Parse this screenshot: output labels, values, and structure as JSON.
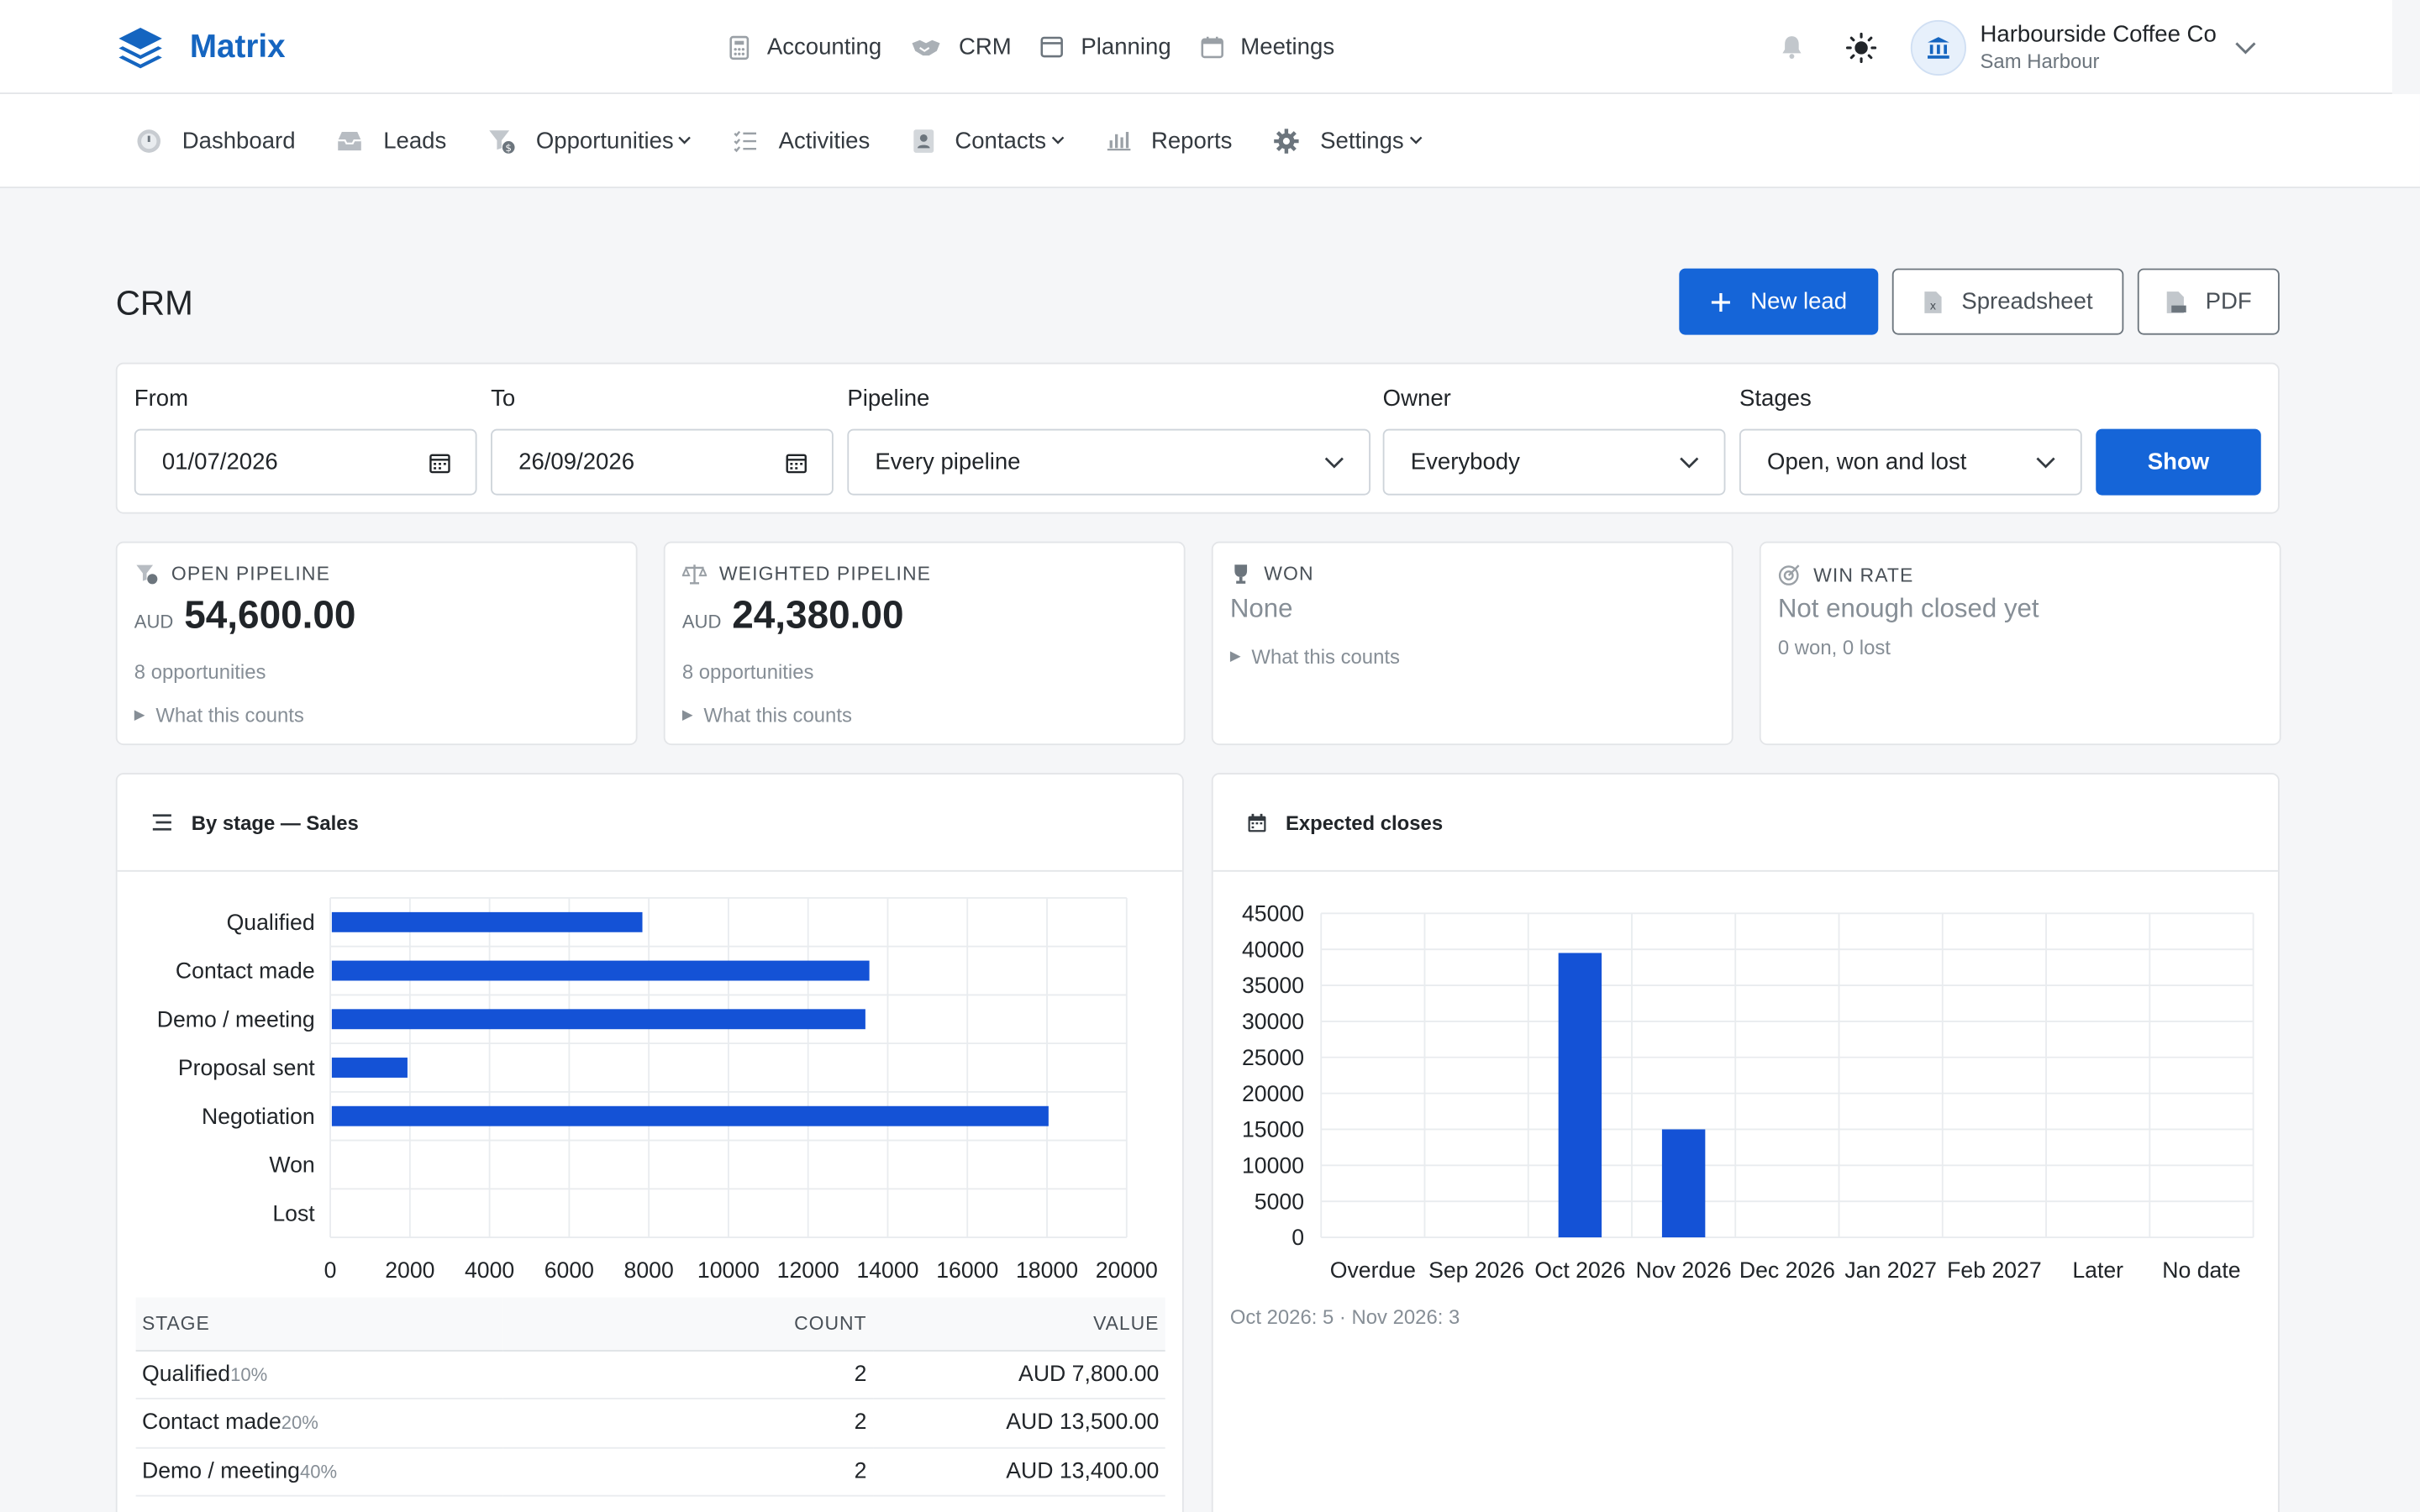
{
  "brand": {
    "name": "Matrix",
    "color": "#1565c0"
  },
  "app_nav": [
    {
      "label": "Accounting",
      "icon": "calculator-icon"
    },
    {
      "label": "CRM",
      "icon": "handshake-icon"
    },
    {
      "label": "Planning",
      "icon": "window-icon"
    },
    {
      "label": "Meetings",
      "icon": "calendar-icon"
    }
  ],
  "account": {
    "company": "Harbourside Coffee Co",
    "user": "Sam Harbour"
  },
  "sub_nav": [
    {
      "label": "Dashboard",
      "icon": "info-circle-icon",
      "dropdown": false
    },
    {
      "label": "Leads",
      "icon": "inbox-icon",
      "dropdown": false
    },
    {
      "label": "Opportunities",
      "icon": "funnel-dollar-icon",
      "dropdown": true
    },
    {
      "label": "Activities",
      "icon": "checklist-icon",
      "dropdown": false
    },
    {
      "label": "Contacts",
      "icon": "contact-card-icon",
      "dropdown": true
    },
    {
      "label": "Reports",
      "icon": "bar-chart-icon",
      "dropdown": false
    },
    {
      "label": "Settings",
      "icon": "gear-icon",
      "dropdown": true
    }
  ],
  "page": {
    "title": "CRM",
    "actions": {
      "new_lead": "New lead",
      "spreadsheet": "Spreadsheet",
      "pdf": "PDF"
    }
  },
  "filters": {
    "from": {
      "label": "From",
      "value": "01/07/2026"
    },
    "to": {
      "label": "To",
      "value": "26/09/2026"
    },
    "pipeline": {
      "label": "Pipeline",
      "value": "Every pipeline"
    },
    "owner": {
      "label": "Owner",
      "value": "Everybody"
    },
    "stages": {
      "label": "Stages",
      "value": "Open, won and lost"
    },
    "show_label": "Show"
  },
  "kpis": {
    "open": {
      "label": "OPEN PIPELINE",
      "currency": "AUD",
      "value": "54,600.00",
      "sub": "8 opportunities",
      "disclosure": "What this counts"
    },
    "weighted": {
      "label": "WEIGHTED PIPELINE",
      "currency": "AUD",
      "value": "24,380.00",
      "sub": "8 opportunities",
      "disclosure": "What this counts"
    },
    "won": {
      "label": "WON",
      "value": "None",
      "disclosure": "What this counts"
    },
    "winrate": {
      "label": "WIN RATE",
      "value": "Not enough closed yet",
      "sub": "0 won, 0 lost"
    }
  },
  "by_stage": {
    "title": "By stage — Sales",
    "table": {
      "headers": [
        "STAGE",
        "COUNT",
        "VALUE"
      ],
      "rows": [
        {
          "stage": "Qualified",
          "pct": "10%",
          "count": "2",
          "value": "AUD 7,800.00"
        },
        {
          "stage": "Contact made",
          "pct": "20%",
          "count": "2",
          "value": "AUD 13,500.00"
        },
        {
          "stage": "Demo / meeting",
          "pct": "40%",
          "count": "2",
          "value": "AUD 13,400.00"
        }
      ]
    }
  },
  "expected_closes": {
    "title": "Expected closes",
    "summary": "Oct 2026: 5 · Nov 2026: 3"
  },
  "chart_data": [
    {
      "type": "bar",
      "orientation": "horizontal",
      "categories": [
        "Qualified",
        "Contact made",
        "Demo / meeting",
        "Proposal sent",
        "Negotiation",
        "Won",
        "Lost"
      ],
      "values": [
        7800,
        13500,
        13400,
        1900,
        18000,
        0,
        0
      ],
      "xlim": [
        0,
        20000
      ],
      "xticks": [
        0,
        2000,
        4000,
        6000,
        8000,
        10000,
        12000,
        14000,
        16000,
        18000,
        20000
      ],
      "color": "#1452d6",
      "grid": true
    },
    {
      "type": "bar",
      "categories": [
        "Overdue",
        "Sep 2026",
        "Oct 2026",
        "Nov 2026",
        "Dec 2026",
        "Jan 2027",
        "Feb 2027",
        "Later",
        "No date"
      ],
      "values": [
        0,
        0,
        39500,
        15000,
        0,
        0,
        0,
        0,
        0
      ],
      "ylim": [
        0,
        45000
      ],
      "yticks": [
        0,
        5000,
        10000,
        15000,
        20000,
        25000,
        30000,
        35000,
        40000,
        45000
      ],
      "color": "#1452d6",
      "grid": true
    }
  ]
}
